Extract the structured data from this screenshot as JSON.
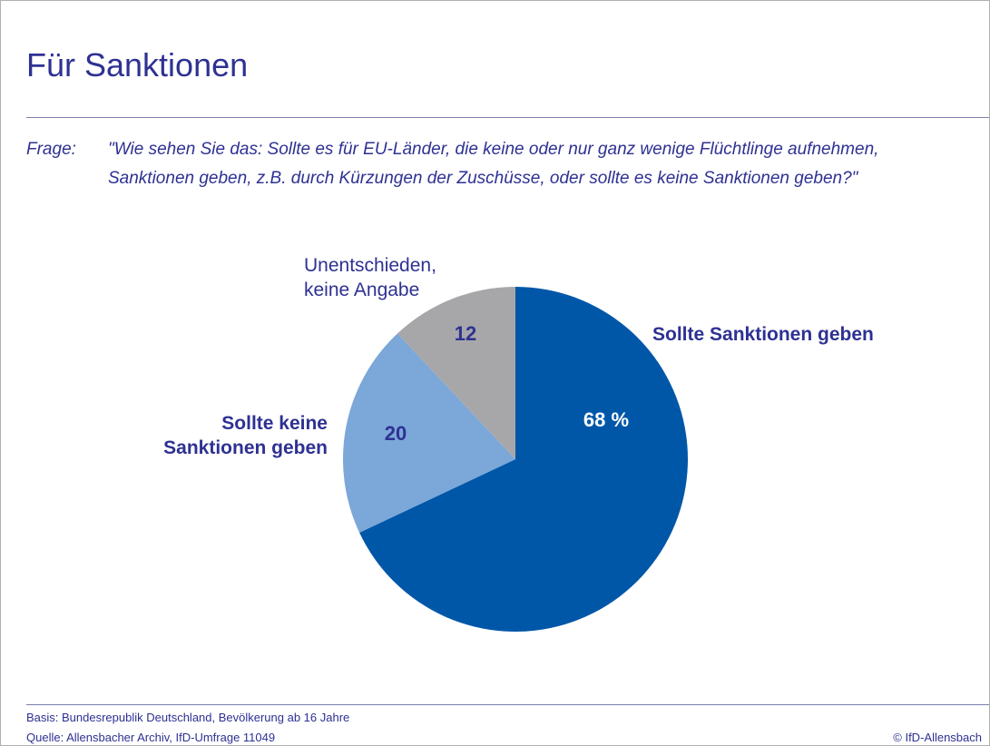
{
  "chart_data": {
    "type": "pie",
    "title": "Für Sanktionen",
    "question_label": "Frage:",
    "question": "\"Wie sehen Sie das: Sollte es für EU-Länder, die keine oder nur ganz wenige Flüchtlinge aufnehmen, Sanktionen geben, z.B. durch Kürzungen der Zuschüsse, oder sollte es keine Sanktionen geben?\"",
    "categories": [
      "Sollte Sanktionen geben",
      "Sollte keine Sanktionen geben",
      "Unentschieden, keine Angabe"
    ],
    "values": [
      68,
      20,
      12
    ],
    "value_labels": [
      "68 %",
      "20",
      "12"
    ],
    "colors": [
      "#0057a8",
      "#7ba7d9",
      "#a7a7a9"
    ],
    "basis": "Basis: Bundesrepublik Deutschland, Bevölkerung ab 16 Jahre",
    "source": "Quelle: Allensbacher Archiv, IfD-Umfrage 11049",
    "copyright": "© IfD-Allensbach"
  }
}
